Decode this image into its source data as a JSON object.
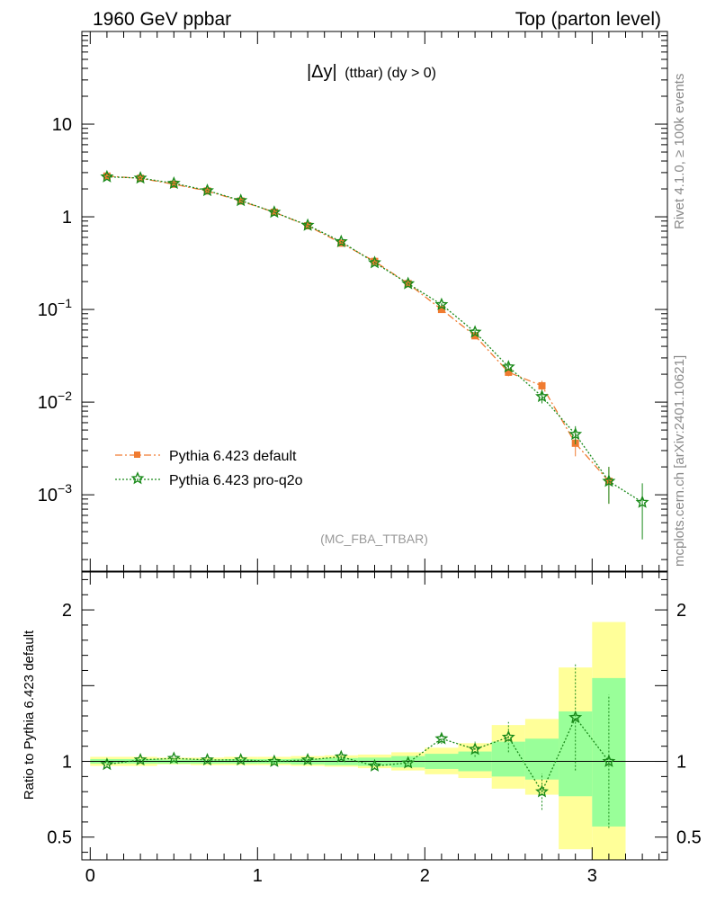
{
  "header": {
    "left": "1960 GeV ppbar",
    "right": "Top (parton level)"
  },
  "side_labels": {
    "rivet": "Rivet 4.1.0, ≥ 100k events",
    "mcplots": "mcplots.cern.ch [arXiv:2401.10621]"
  },
  "chart_data": {
    "type": "line",
    "title_main": "|Δy|",
    "title_sub": "(ttbar) (dy > 0)",
    "analysis_tag": "(MC_FBA_TTBAR)",
    "xlabel": "",
    "ylabel": "",
    "xlim": [
      -0.05,
      3.45
    ],
    "ylim": [
      0.00015,
      100
    ],
    "yscale": "log",
    "x_ticks": [
      0,
      1,
      2,
      3
    ],
    "y_tick_labels": [
      {
        "value": 10,
        "base": "10",
        "exp": ""
      },
      {
        "value": 1,
        "base": "1",
        "exp": ""
      },
      {
        "value": 0.1,
        "base": "10",
        "exp": "−1"
      },
      {
        "value": 0.01,
        "base": "10",
        "exp": "−2"
      },
      {
        "value": 0.001,
        "base": "10",
        "exp": "−3"
      }
    ],
    "legend_position": "bottom-left",
    "series": [
      {
        "name": "Pythia 6.423 default",
        "color": "#f07b30",
        "marker": "square",
        "linestyle": "dash-dot",
        "x": [
          0.1,
          0.3,
          0.5,
          0.7,
          0.9,
          1.1,
          1.3,
          1.5,
          1.7,
          1.9,
          2.1,
          2.3,
          2.5,
          2.7,
          2.9,
          3.1
        ],
        "y": [
          2.75,
          2.6,
          2.25,
          1.9,
          1.48,
          1.12,
          0.8,
          0.52,
          0.33,
          0.19,
          0.1,
          0.052,
          0.021,
          0.015,
          0.0036,
          0.0014
        ],
        "err": [
          0.03,
          0.03,
          0.03,
          0.02,
          0.02,
          0.015,
          0.01,
          0.008,
          0.006,
          0.005,
          0.004,
          0.003,
          0.002,
          0.002,
          0.001,
          0.0006
        ]
      },
      {
        "name": "Pythia 6.423 pro-q2o",
        "color": "#1a8a1a",
        "marker": "star",
        "linestyle": "dotted",
        "x": [
          0.1,
          0.3,
          0.5,
          0.7,
          0.9,
          1.1,
          1.3,
          1.5,
          1.7,
          1.9,
          2.1,
          2.3,
          2.5,
          2.7,
          2.9,
          3.1,
          3.3
        ],
        "y": [
          2.7,
          2.62,
          2.3,
          1.92,
          1.5,
          1.12,
          0.81,
          0.54,
          0.32,
          0.19,
          0.113,
          0.057,
          0.024,
          0.0115,
          0.0045,
          0.0014,
          0.00083
        ],
        "err": [
          0.03,
          0.03,
          0.03,
          0.02,
          0.02,
          0.015,
          0.01,
          0.008,
          0.006,
          0.005,
          0.004,
          0.003,
          0.002,
          0.0018,
          0.001,
          0.0006,
          0.0005
        ]
      }
    ],
    "ratio": {
      "ylabel": "Ratio to Pythia 6.423 default",
      "ylim": [
        0.35,
        2.25
      ],
      "tick_labels": [
        {
          "value": 2,
          "label": "2"
        },
        {
          "value": 1,
          "label": "1"
        },
        {
          "value": 0.5,
          "label": "0.5"
        }
      ],
      "bands": {
        "edges": [
          0.0,
          0.2,
          0.4,
          0.6,
          0.8,
          1.0,
          1.2,
          1.4,
          1.6,
          1.8,
          2.0,
          2.2,
          2.4,
          2.6,
          2.8,
          3.0,
          3.2
        ],
        "yellow_lo": [
          0.97,
          0.97,
          0.98,
          0.975,
          0.975,
          0.975,
          0.97,
          0.965,
          0.955,
          0.94,
          0.915,
          0.89,
          0.82,
          0.78,
          0.42,
          0.35
        ],
        "yellow_hi": [
          1.03,
          1.03,
          1.025,
          1.025,
          1.03,
          1.03,
          1.035,
          1.04,
          1.045,
          1.06,
          1.09,
          1.12,
          1.24,
          1.28,
          1.62,
          1.92
        ],
        "green_lo": [
          0.985,
          0.985,
          0.985,
          0.985,
          0.985,
          0.985,
          0.98,
          0.975,
          0.97,
          0.96,
          0.95,
          0.935,
          0.9,
          0.88,
          0.77,
          0.57
        ],
        "green_hi": [
          1.015,
          1.015,
          1.012,
          1.012,
          1.015,
          1.015,
          1.018,
          1.022,
          1.025,
          1.035,
          1.05,
          1.065,
          1.13,
          1.15,
          1.33,
          1.55
        ]
      },
      "points": {
        "x": [
          0.1,
          0.3,
          0.5,
          0.7,
          0.9,
          1.1,
          1.3,
          1.5,
          1.7,
          1.9,
          2.1,
          2.3,
          2.5,
          2.7,
          2.9,
          3.1
        ],
        "y": [
          0.98,
          1.01,
          1.02,
          1.01,
          1.01,
          1.0,
          1.01,
          1.03,
          0.97,
          0.99,
          1.15,
          1.08,
          1.16,
          0.8,
          1.29,
          1.0
        ],
        "err": [
          0.01,
          0.01,
          0.01,
          0.01,
          0.01,
          0.01,
          0.01,
          0.015,
          0.02,
          0.025,
          0.035,
          0.05,
          0.1,
          0.12,
          0.35,
          0.44
        ]
      }
    }
  }
}
